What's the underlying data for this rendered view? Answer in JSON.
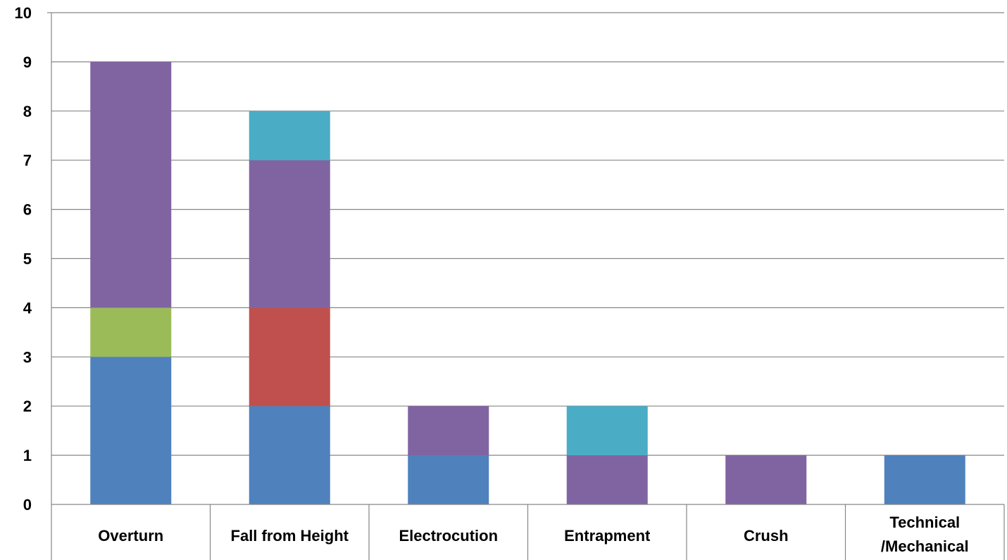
{
  "chart_data": {
    "type": "bar",
    "stacked": true,
    "categories": [
      "Overturn",
      "Fall from Height",
      "Electrocution",
      "Entrapment",
      "Crush",
      "Technical /Mechanical"
    ],
    "category_lines": [
      [
        "Overturn"
      ],
      [
        "Fall from Height"
      ],
      [
        "Electrocution"
      ],
      [
        "Entrapment"
      ],
      [
        "Crush"
      ],
      [
        "Technical",
        "/Mechanical"
      ]
    ],
    "series": [
      {
        "color": "#4F81BD",
        "values": [
          3,
          2,
          1,
          0,
          0,
          1
        ]
      },
      {
        "color": "#C0504D",
        "values": [
          0,
          2,
          0,
          0,
          0,
          0
        ]
      },
      {
        "color": "#9BBB59",
        "values": [
          1,
          0,
          0,
          0,
          0,
          0
        ]
      },
      {
        "color": "#8064A2",
        "values": [
          5,
          3,
          1,
          1,
          1,
          0
        ]
      },
      {
        "color": "#4BACC6",
        "values": [
          0,
          1,
          0,
          1,
          0,
          0
        ]
      }
    ],
    "yticks": [
      0,
      1,
      2,
      3,
      4,
      5,
      6,
      7,
      8,
      9,
      10
    ],
    "ylim": [
      0,
      10
    ],
    "title": "",
    "xlabel": "",
    "ylabel": "",
    "grid": true,
    "legend": "none"
  }
}
